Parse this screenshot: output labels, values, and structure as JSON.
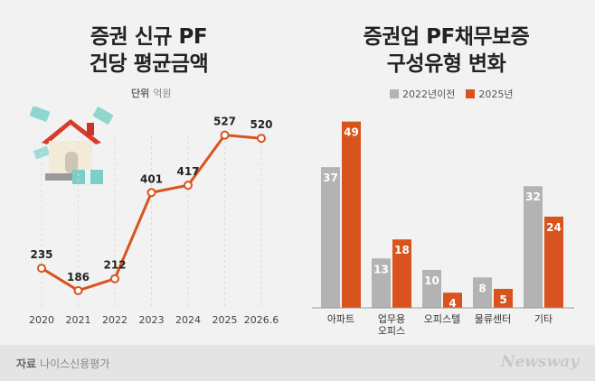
{
  "left": {
    "title_line1": "증권 신규 PF",
    "title_line2": "건당 평균금액",
    "unit_label": "단위",
    "unit_value": "억원"
  },
  "right": {
    "title_line1": "증권업 PF채무보증",
    "title_line2": "구성유형 변화"
  },
  "footer": {
    "source_label": "자료",
    "source_value": "나이스신용평가",
    "brand": "Newsway"
  },
  "colors": {
    "line": "#d9531e",
    "bar_2022": "#b3b3b3",
    "bar_2025": "#d9531e"
  },
  "chart_data": [
    {
      "type": "line",
      "title": "증권 신규 PF 건당 평균금액",
      "unit": "억원",
      "x": [
        "2020",
        "2021",
        "2022",
        "2023",
        "2024",
        "2025",
        "2026.6"
      ],
      "series": [
        {
          "values": [
            235,
            186,
            212,
            401,
            417,
            527,
            520
          ]
        }
      ],
      "ylim": [
        150,
        560
      ],
      "grid": "vertical"
    },
    {
      "type": "bar",
      "title": "증권업 PF채무보증 구성유형 변화",
      "categories": [
        "아파트",
        "업무용 오피스",
        "오피스텔",
        "물류센터",
        "기타"
      ],
      "series": [
        {
          "name": "2022년이전",
          "values": [
            37,
            13,
            10,
            8,
            32
          ]
        },
        {
          "name": "2025년",
          "values": [
            49,
            18,
            4,
            5,
            24
          ]
        }
      ],
      "ylim": [
        0,
        52
      ],
      "legend": "top"
    }
  ]
}
